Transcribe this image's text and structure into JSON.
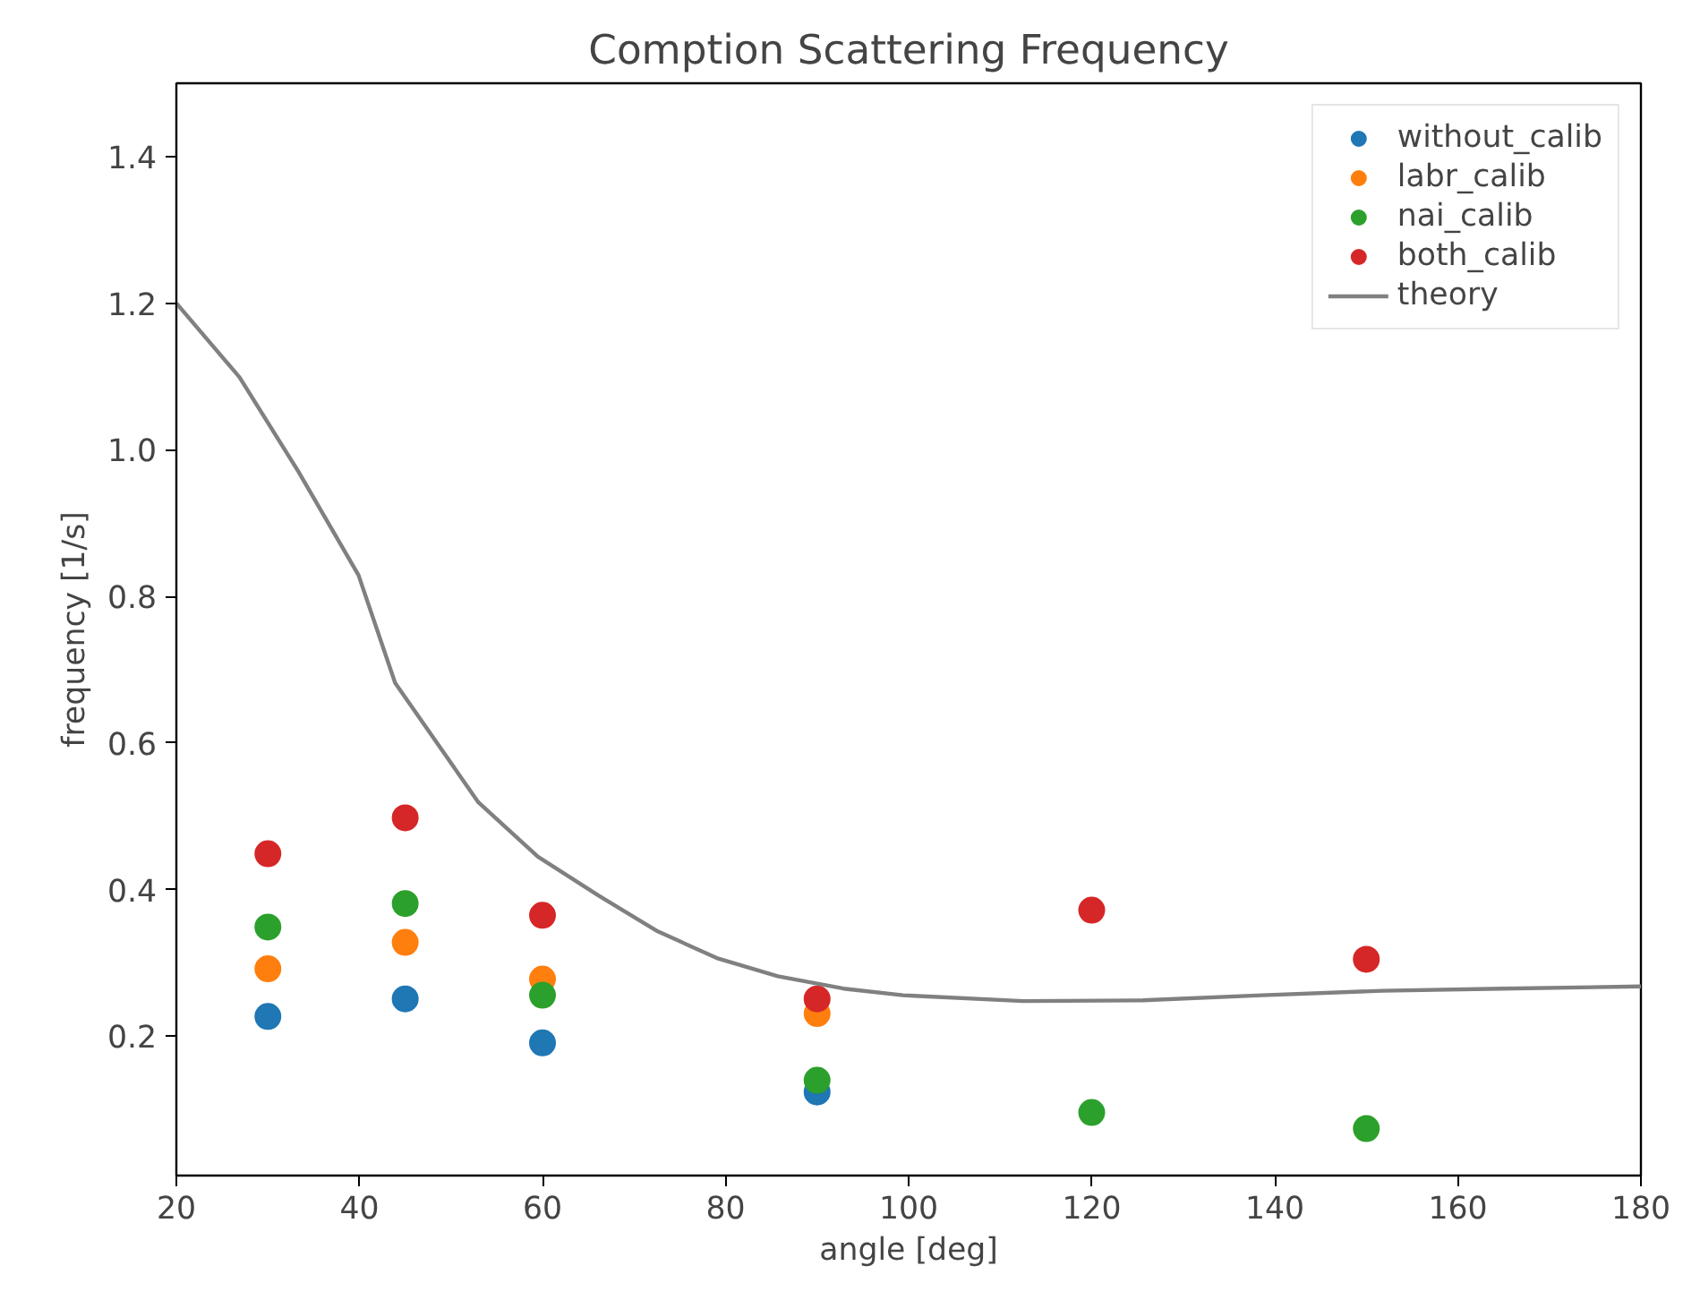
{
  "chart_data": {
    "type": "scatter",
    "title": "Comption Scattering Frequency",
    "xlabel": "angle [deg]",
    "ylabel": "frequency [1/s]",
    "x": [
      30,
      45,
      60,
      90,
      120,
      150
    ],
    "series": [
      {
        "name": "without_calib",
        "color": "#1f77b4",
        "marker": "circle",
        "values": [
          0.227,
          0.251,
          0.191,
          0.124,
          null,
          null
        ]
      },
      {
        "name": "labr_calib",
        "color": "#ff7f0e",
        "marker": "circle",
        "values": [
          0.292,
          0.328,
          0.278,
          0.231,
          null,
          null
        ]
      },
      {
        "name": "nai_calib",
        "color": "#2ca02c",
        "marker": "circle",
        "values": [
          0.349,
          0.381,
          0.256,
          0.14,
          0.096,
          0.074
        ]
      },
      {
        "name": "both_calib",
        "color": "#d62728",
        "marker": "circle",
        "values": [
          0.449,
          0.498,
          0.365,
          0.251,
          0.372,
          0.305
        ]
      },
      {
        "name": "theory",
        "type": "line",
        "color": "#808080",
        "marker": "none",
        "x": [
          20,
          26.9,
          33.4,
          39.9,
          43.9,
          53.0,
          59.5,
          66.1,
          72.6,
          79.2,
          85.7,
          92.9,
          99.4,
          112.5,
          125.6,
          138.6,
          151.7,
          164.8,
          180
        ],
        "values": [
          1.2,
          1.099,
          0.969,
          0.829,
          0.682,
          0.519,
          0.445,
          0.392,
          0.343,
          0.306,
          0.282,
          0.265,
          0.256,
          0.248,
          0.249,
          0.256,
          0.262,
          0.265,
          0.268
        ]
      }
    ],
    "xlim": [
      20,
      180
    ],
    "ylim": [
      0.01,
      1.5
    ],
    "xticks": [
      20,
      40,
      60,
      80,
      100,
      120,
      140,
      160,
      180
    ],
    "yticks": [
      0.2,
      {
        "value": 0.4,
        "label": "0.4"
      },
      {
        "value": 0.6,
        "label": "0.6"
      },
      {
        "value": 0.8,
        "label": "0.8"
      },
      {
        "value": 1.0,
        "label": "1.0"
      },
      {
        "value": 1.2,
        "label": "1.2"
      },
      {
        "value": 1.4,
        "label": "1.4"
      }
    ],
    "grid": false,
    "legend": "top right"
  }
}
